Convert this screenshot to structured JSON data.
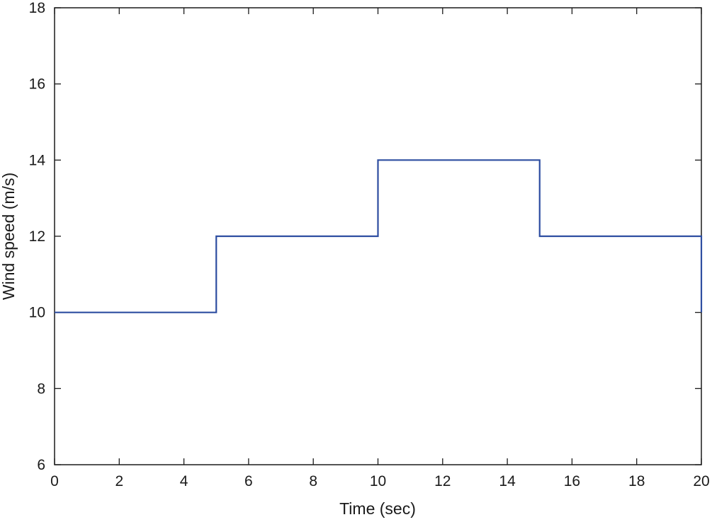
{
  "chart_data": {
    "type": "line",
    "xlabel": "Time (sec)",
    "ylabel": "Wind speed (m/s)",
    "xlim": [
      0,
      20
    ],
    "ylim": [
      6,
      18
    ],
    "xticks": [
      "0",
      "2",
      "4",
      "6",
      "8",
      "10",
      "12",
      "14",
      "16",
      "18",
      "20"
    ],
    "yticks": [
      "6",
      "8",
      "10",
      "12",
      "14",
      "16",
      "18"
    ],
    "grid": false,
    "series": [
      {
        "color": "#2e4ea1",
        "x": [
          0,
          5,
          5,
          10,
          10,
          15,
          15,
          20,
          20
        ],
        "y": [
          10,
          10,
          12,
          12,
          14,
          14,
          12,
          12,
          10
        ]
      }
    ]
  }
}
